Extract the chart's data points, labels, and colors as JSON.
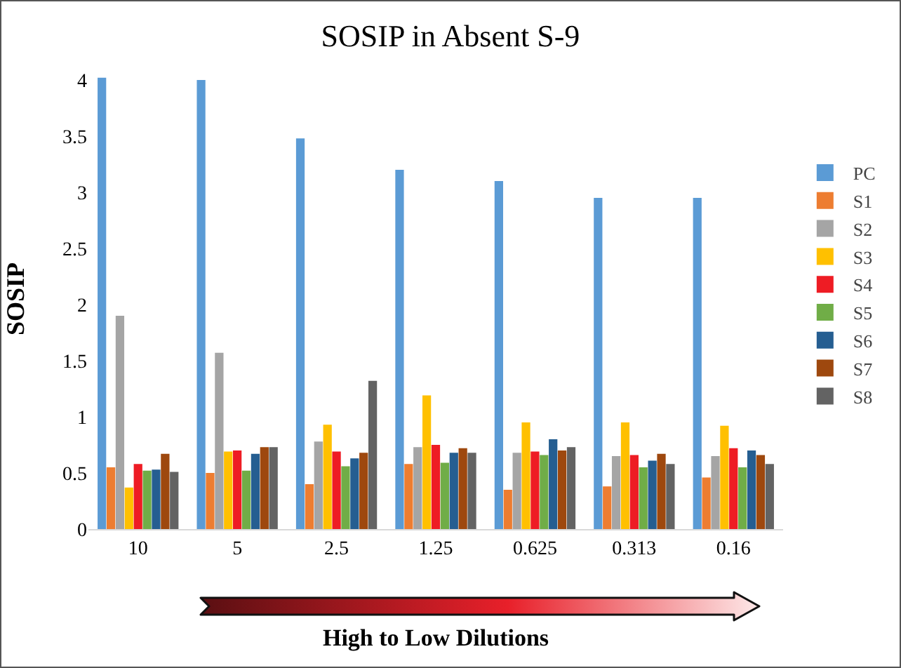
{
  "chart_data": {
    "type": "bar",
    "title": "SOSIP in Absent S-9",
    "xlabel": "High to Low Dilutions",
    "ylabel": "SOSIP",
    "categories": [
      "10",
      "5",
      "2.5",
      "1.25",
      "0.625",
      "0.313",
      "0.16"
    ],
    "series": [
      {
        "name": "PC",
        "color": "#5b9bd5",
        "values": [
          4.02,
          4.0,
          3.48,
          3.2,
          3.1,
          2.95,
          2.95
        ]
      },
      {
        "name": "S1",
        "color": "#ed7d31",
        "values": [
          0.55,
          0.5,
          0.4,
          0.58,
          0.35,
          0.38,
          0.46
        ]
      },
      {
        "name": "S2",
        "color": "#a5a5a5",
        "values": [
          1.9,
          1.57,
          0.78,
          0.73,
          0.68,
          0.65,
          0.65
        ]
      },
      {
        "name": "S3",
        "color": "#ffc000",
        "values": [
          0.37,
          0.69,
          0.93,
          1.19,
          0.95,
          0.95,
          0.92
        ]
      },
      {
        "name": "S4",
        "color": "#ee1c24",
        "values": [
          0.58,
          0.7,
          0.69,
          0.75,
          0.69,
          0.66,
          0.72
        ]
      },
      {
        "name": "S5",
        "color": "#70ad47",
        "values": [
          0.52,
          0.52,
          0.56,
          0.59,
          0.66,
          0.55,
          0.55
        ]
      },
      {
        "name": "S6",
        "color": "#255e91",
        "values": [
          0.53,
          0.67,
          0.63,
          0.68,
          0.8,
          0.61,
          0.7
        ]
      },
      {
        "name": "S7",
        "color": "#9e480e",
        "values": [
          0.67,
          0.73,
          0.68,
          0.72,
          0.7,
          0.67,
          0.66
        ]
      },
      {
        "name": "S8",
        "color": "#636363",
        "values": [
          0.51,
          0.73,
          1.32,
          0.68,
          0.73,
          0.58,
          0.58
        ]
      }
    ],
    "ylim": [
      0,
      4.1
    ],
    "yticks": [
      0,
      0.5,
      1,
      1.5,
      2,
      2.5,
      3,
      3.5,
      4
    ],
    "grid": false,
    "legend": "right"
  }
}
